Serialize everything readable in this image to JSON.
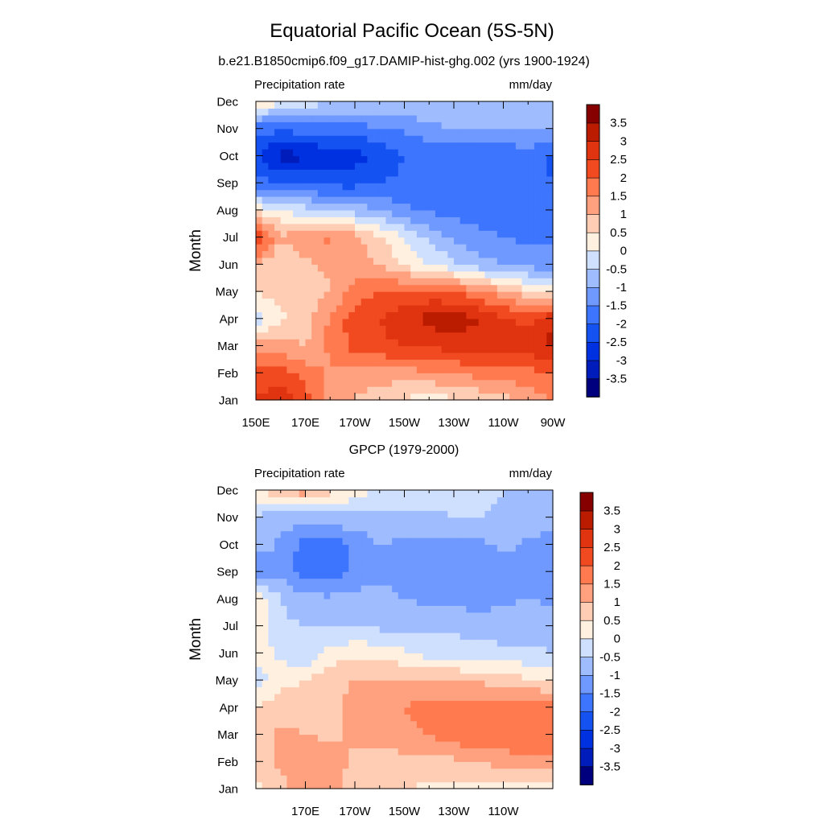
{
  "figure": {
    "title": "Equatorial Pacific Ocean (5S-5N)"
  },
  "colorbar": {
    "levels": [
      -3.5,
      -3,
      -2.5,
      -2,
      -1.5,
      -1,
      -0.5,
      0,
      0.5,
      1,
      1.5,
      2,
      2.5,
      3,
      3.5
    ],
    "labels": [
      "-3.5",
      "-3",
      "-2.5",
      "-2",
      "-1.5",
      "-1",
      "-0.5",
      "0",
      "0.5",
      "1",
      "1.5",
      "2",
      "2.5",
      "3",
      "3.5"
    ],
    "colors": [
      "#00007f",
      "#001dbb",
      "#0031e0",
      "#1552f2",
      "#3d75ff",
      "#6f99ff",
      "#9fbcff",
      "#cfe0ff",
      "#fff0e0",
      "#ffcdb4",
      "#ffa07f",
      "#ff7a4f",
      "#f24a20",
      "#e03310",
      "#bb1c00",
      "#870000"
    ]
  },
  "chart_data": [
    {
      "type": "heatmap",
      "subtitle": "b.e21.B1850cmip6.f09_g17.DAMIP-hist-ghg.002 (yrs 1900-1924)",
      "left_label": "Precipitation rate",
      "right_label": "mm/day",
      "ylabel": "Month",
      "x_ticklabels": [
        "150E",
        "170E",
        "170W",
        "150W",
        "130W",
        "110W",
        "90W"
      ],
      "y_ticklabels": [
        "Jan",
        "Feb",
        "Mar",
        "Apr",
        "May",
        "Jun",
        "Jul",
        "Aug",
        "Sep",
        "Oct",
        "Nov",
        "Dec"
      ],
      "x_unit": "longitude",
      "x": [
        150,
        160,
        170,
        180,
        190,
        200,
        210,
        220,
        230,
        240,
        250,
        260,
        270
      ],
      "y": [
        "Jan",
        "Feb",
        "Mar",
        "Apr",
        "May",
        "Jun",
        "Jul",
        "Aug",
        "Sep",
        "Oct",
        "Nov",
        "Dec"
      ],
      "values": [
        [
          2.5,
          2.8,
          2.2,
          1.3,
          0.9,
          0.6,
          0.4,
          0.3,
          0.4,
          0.6,
          0.8,
          1.2,
          1.5
        ],
        [
          2.3,
          2.3,
          1.8,
          1.4,
          1.4,
          1.3,
          1.3,
          1.4,
          1.5,
          1.7,
          1.8,
          1.8,
          2.0
        ],
        [
          1.4,
          1.2,
          1.0,
          1.6,
          2.2,
          2.4,
          2.5,
          2.6,
          2.7,
          2.8,
          2.8,
          2.8,
          3.1
        ],
        [
          -0.3,
          0.4,
          0.7,
          1.6,
          2.3,
          2.5,
          2.8,
          3.2,
          3.3,
          3.0,
          2.6,
          2.3,
          3.0
        ],
        [
          0.5,
          0.8,
          0.6,
          1.0,
          1.7,
          2.0,
          2.1,
          2.1,
          2.0,
          1.6,
          1.2,
          0.6,
          0.2
        ],
        [
          1.1,
          0.4,
          0.9,
          1.1,
          1.2,
          1.0,
          0.4,
          0.0,
          -0.4,
          -0.8,
          -1.0,
          -1.2,
          -1.3
        ],
        [
          2.6,
          1.1,
          1.3,
          1.6,
          1.2,
          0.6,
          0.0,
          -0.6,
          -1.1,
          -1.3,
          -1.5,
          -1.6,
          -1.6
        ],
        [
          0.4,
          0.0,
          -0.3,
          -0.5,
          -0.7,
          -1.0,
          -1.4,
          -1.6,
          -1.7,
          -1.8,
          -1.8,
          -1.8,
          -1.7
        ],
        [
          -1.8,
          -2.0,
          -2.1,
          -2.2,
          -2.2,
          -2.0,
          -1.9,
          -1.9,
          -1.9,
          -1.9,
          -1.9,
          -1.9,
          -2.0
        ],
        [
          -2.4,
          -3.2,
          -3.1,
          -2.8,
          -2.7,
          -2.4,
          -2.0,
          -2.0,
          -2.0,
          -2.0,
          -1.9,
          -1.8,
          -2.1
        ],
        [
          -1.8,
          -1.9,
          -1.8,
          -1.8,
          -1.7,
          -1.6,
          -1.4,
          -1.1,
          -1.0,
          -1.0,
          -0.9,
          -0.9,
          -0.9
        ],
        [
          0.4,
          0.2,
          -0.2,
          -0.4,
          -0.4,
          -0.5,
          -0.6,
          -0.6,
          -0.6,
          -0.6,
          -0.5,
          -0.5,
          -0.6
        ]
      ],
      "levels": [
        -3.5,
        -3,
        -2.5,
        -2,
        -1.5,
        -1,
        -0.5,
        0,
        0.5,
        1,
        1.5,
        2,
        2.5,
        3,
        3.5
      ]
    },
    {
      "type": "heatmap",
      "subtitle": "GPCP (1979-2000)",
      "left_label": "Precipitation rate",
      "right_label": "mm/day",
      "ylabel": "Month",
      "x_ticklabels": [
        "170E",
        "170W",
        "150W",
        "130W",
        "110W"
      ],
      "y_ticklabels": [
        "Jan",
        "Feb",
        "Mar",
        "Apr",
        "May",
        "Jun",
        "Jul",
        "Aug",
        "Sep",
        "Oct",
        "Nov",
        "Dec"
      ],
      "x_unit": "longitude",
      "x": [
        150,
        160,
        170,
        180,
        190,
        200,
        210,
        220,
        230,
        240,
        250,
        260,
        270
      ],
      "y": [
        "Jan",
        "Feb",
        "Mar",
        "Apr",
        "May",
        "Jun",
        "Jul",
        "Aug",
        "Sep",
        "Oct",
        "Nov",
        "Dec"
      ],
      "values": [
        [
          0.4,
          0.8,
          1.3,
          1.1,
          0.8,
          0.5,
          0.5,
          0.4,
          0.3,
          0.3,
          0.3,
          0.2,
          0.3
        ],
        [
          0.6,
          1.1,
          1.4,
          1.2,
          0.9,
          0.7,
          0.8,
          0.8,
          0.9,
          1.0,
          1.2,
          1.3,
          1.4
        ],
        [
          0.6,
          1.1,
          1.0,
          0.9,
          1.1,
          1.2,
          1.4,
          1.5,
          1.8,
          1.9,
          1.9,
          2.0,
          2.0
        ],
        [
          0.5,
          0.8,
          0.7,
          0.8,
          1.2,
          1.3,
          1.5,
          1.7,
          1.8,
          1.8,
          1.7,
          1.8,
          1.7
        ],
        [
          -0.3,
          0.4,
          0.5,
          0.9,
          1.0,
          1.1,
          1.1,
          1.0,
          1.0,
          0.9,
          0.8,
          0.6,
          0.5
        ],
        [
          0.4,
          -0.2,
          -0.5,
          0.2,
          0.4,
          0.3,
          0.1,
          -0.2,
          -0.3,
          -0.4,
          -0.4,
          -0.4,
          -0.5
        ],
        [
          0.4,
          -0.4,
          -0.5,
          -0.6,
          -0.6,
          -0.6,
          -0.7,
          -0.6,
          -0.6,
          -0.6,
          -0.7,
          -0.7,
          -0.8
        ],
        [
          0.4,
          -0.5,
          -0.8,
          -0.9,
          -0.8,
          -0.8,
          -1.0,
          -1.1,
          -1.2,
          -1.3,
          -1.1,
          -1.0,
          -1.1
        ],
        [
          -1.5,
          -1.2,
          -1.8,
          -1.8,
          -1.4,
          -1.1,
          -1.2,
          -1.4,
          -1.4,
          -1.4,
          -1.2,
          -1.1,
          -1.3
        ],
        [
          -0.7,
          -1.1,
          -1.7,
          -1.9,
          -1.4,
          -1.0,
          -1.1,
          -1.2,
          -1.3,
          -1.1,
          -0.9,
          -1.1,
          -1.3
        ],
        [
          -0.6,
          -0.8,
          -0.8,
          -0.7,
          -0.6,
          -0.6,
          -0.6,
          -0.6,
          -0.5,
          -0.5,
          -0.6,
          -0.7,
          -0.7
        ],
        [
          0.4,
          1.1,
          1.3,
          0.7,
          0.2,
          -0.1,
          -0.2,
          -0.3,
          -0.4,
          -0.4,
          -0.5,
          -0.6,
          -0.7
        ]
      ],
      "levels": [
        -3.5,
        -3,
        -2.5,
        -2,
        -1.5,
        -1,
        -0.5,
        0,
        0.5,
        1,
        1.5,
        2,
        2.5,
        3,
        3.5
      ]
    }
  ]
}
